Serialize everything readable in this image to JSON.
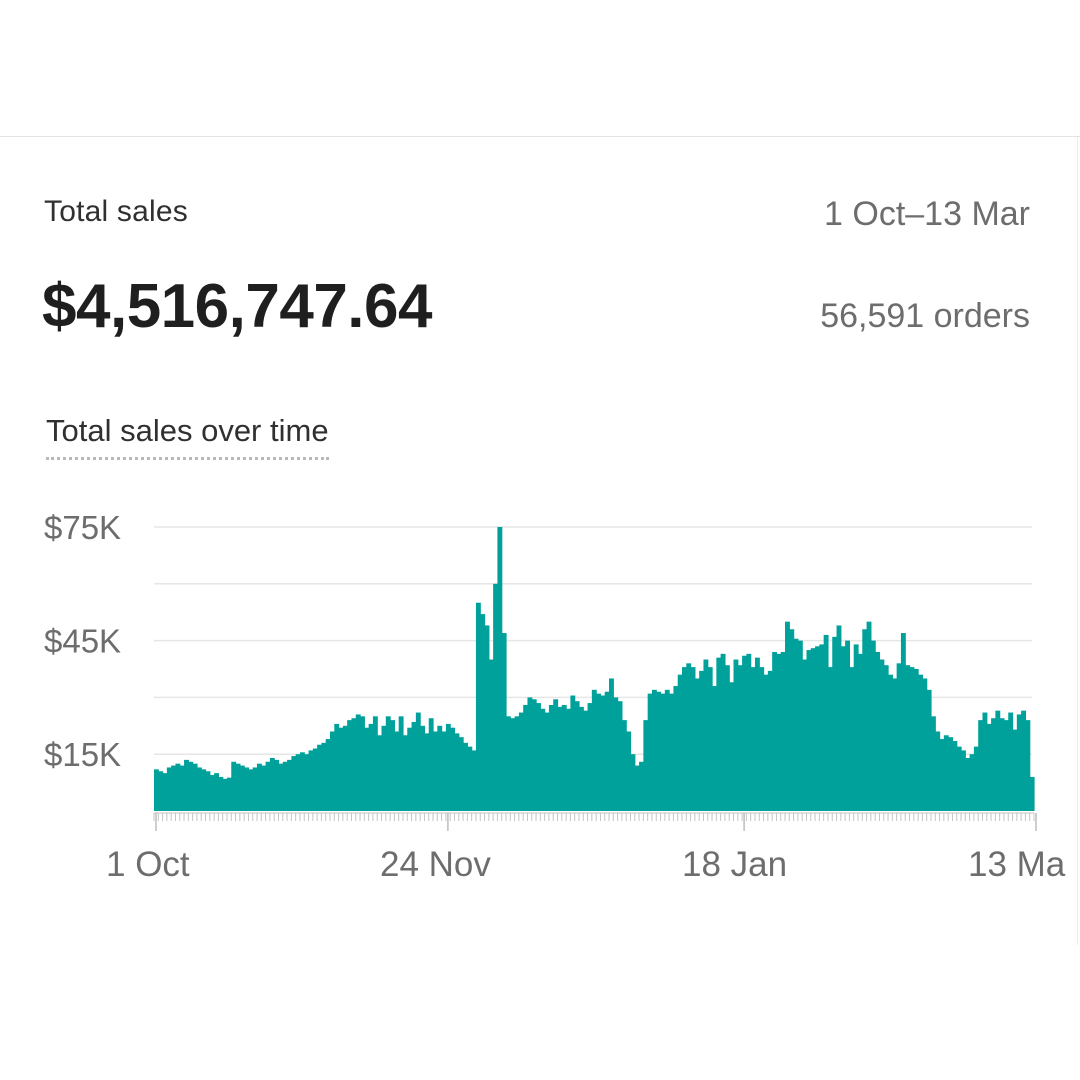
{
  "header": {
    "metric_label": "Total sales",
    "date_range": "1 Oct–13 Mar",
    "total_value": "$4,516,747.64",
    "orders": "56,591 orders"
  },
  "chart_title": "Total sales over time",
  "colors": {
    "bar": "#00a19b",
    "grid": "#e6e6e6",
    "text": "#6d6d6d"
  },
  "chart_data": {
    "type": "bar",
    "x_start": "1 Oct",
    "x_end": "13 Mar",
    "x_tick_labels": [
      "1 Oct",
      "24 Nov",
      "18 Jan",
      "13 Ma"
    ],
    "y_tick_labels": [
      "$75K",
      "$45K",
      "$15K"
    ],
    "y_ticks": [
      75000,
      45000,
      15000
    ],
    "gridlines": [
      75000,
      60000,
      45000,
      30000,
      15000
    ],
    "ylim": [
      0,
      75000
    ],
    "grid": true,
    "values": [
      11000,
      10500,
      10000,
      11500,
      12000,
      12500,
      12000,
      13500,
      13000,
      12500,
      11500,
      11000,
      10500,
      9500,
      10000,
      9000,
      8500,
      8800,
      13000,
      12500,
      12000,
      11500,
      11000,
      11500,
      12500,
      12000,
      13000,
      14000,
      13500,
      12500,
      13000,
      13500,
      14500,
      15000,
      15500,
      15000,
      16000,
      16500,
      17500,
      18000,
      19000,
      21000,
      23000,
      22000,
      22500,
      24000,
      24500,
      25500,
      25000,
      22000,
      23000,
      25000,
      20000,
      22500,
      25000,
      24000,
      21000,
      25000,
      20000,
      22000,
      23500,
      26000,
      22500,
      20500,
      24500,
      21000,
      22500,
      21000,
      23000,
      22000,
      20500,
      19500,
      18000,
      17000,
      16000,
      55000,
      52000,
      49000,
      40000,
      60000,
      75000,
      47000,
      25000,
      24500,
      25000,
      26000,
      28000,
      30000,
      29500,
      28500,
      27000,
      26000,
      28000,
      29500,
      27500,
      28000,
      27000,
      30500,
      29000,
      27500,
      26500,
      28500,
      32000,
      31000,
      30500,
      31500,
      35000,
      30000,
      29000,
      24000,
      21000,
      15000,
      12000,
      13000,
      24000,
      31000,
      32000,
      31500,
      31000,
      32000,
      31000,
      33000,
      36000,
      38000,
      39000,
      38000,
      35000,
      37000,
      40000,
      38000,
      33000,
      40500,
      41500,
      38500,
      34000,
      40000,
      38500,
      41000,
      41500,
      38000,
      40500,
      38000,
      36000,
      37000,
      42000,
      41500,
      42000,
      50000,
      48000,
      45500,
      45000,
      40000,
      42500,
      43000,
      43500,
      44000,
      46500,
      38000,
      46000,
      49000,
      43500,
      45000,
      38000,
      44000,
      41500,
      48000,
      50000,
      45000,
      42000,
      40000,
      38500,
      36000,
      35000,
      39000,
      47000,
      38500,
      38000,
      37500,
      36000,
      35000,
      32000,
      25000,
      21000,
      19000,
      20000,
      19500,
      18500,
      17000,
      16000,
      14000,
      15000,
      17000,
      24000,
      26000,
      23000,
      24500,
      26500,
      24500,
      24000,
      26000,
      21500,
      25500,
      26500,
      24000,
      9000
    ]
  }
}
